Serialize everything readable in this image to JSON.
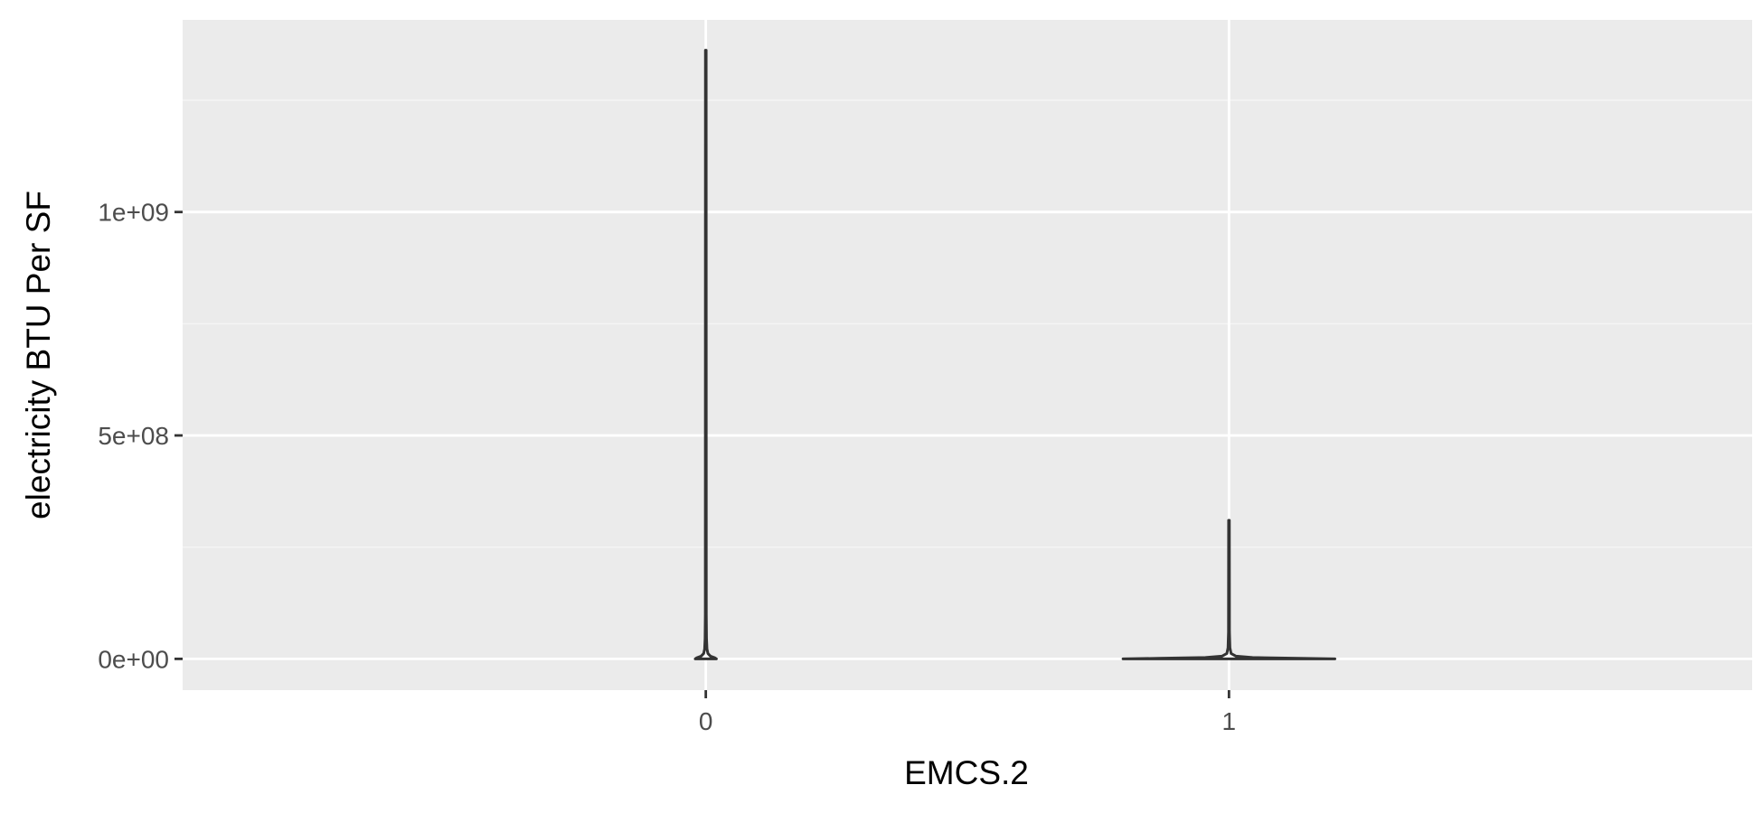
{
  "chart_data": {
    "type": "violin",
    "xlabel": "EMCS.2",
    "ylabel": "electricity BTU Per SF",
    "categories": [
      "0",
      "1"
    ],
    "y_ticks": [
      {
        "value": 0,
        "label": "0e+00"
      },
      {
        "value": 500000000,
        "label": "5e+08"
      },
      {
        "value": 1000000000,
        "label": "1e+09"
      }
    ],
    "ylim": [
      -70000000,
      1430000000
    ],
    "grid": true,
    "series": [
      {
        "category": "0",
        "y_max": 1362000000,
        "profile": [
          {
            "y": 0,
            "density": 0.045
          },
          {
            "y": 2500000,
            "density": 0.038
          },
          {
            "y": 6000000,
            "density": 0.02
          },
          {
            "y": 12000000,
            "density": 0.009
          },
          {
            "y": 22000000,
            "density": 0.005
          },
          {
            "y": 45000000,
            "density": 0.003
          },
          {
            "y": 100000000,
            "density": 0.002
          },
          {
            "y": 1362000000,
            "density": 0.0015
          }
        ]
      },
      {
        "category": "1",
        "y_max": 310000000,
        "profile": [
          {
            "y": 0,
            "density": 0.45
          },
          {
            "y": 1200000,
            "density": 0.3
          },
          {
            "y": 3000000,
            "density": 0.1
          },
          {
            "y": 6000000,
            "density": 0.03
          },
          {
            "y": 12000000,
            "density": 0.009
          },
          {
            "y": 25000000,
            "density": 0.004
          },
          {
            "y": 60000000,
            "density": 0.002
          },
          {
            "y": 310000000,
            "density": 0.0015
          }
        ]
      }
    ],
    "colors": {
      "panel": "#ebebeb",
      "grid_major": "#ffffff",
      "grid_minor": "#f5f5f5",
      "outline": "#333333",
      "tick": "#333333"
    }
  }
}
